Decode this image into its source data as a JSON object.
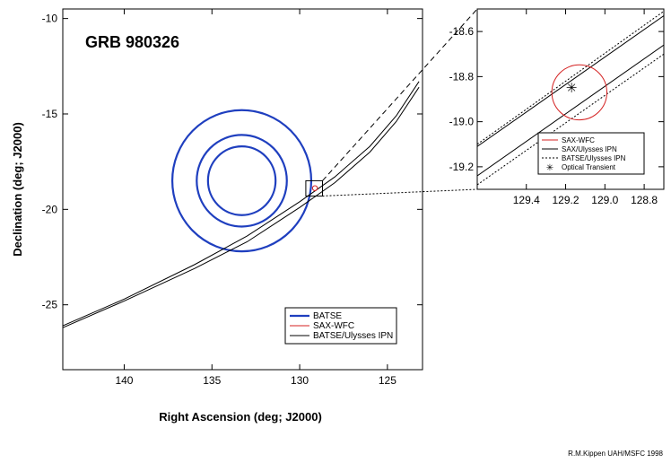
{
  "colors": {
    "batse": "#1f3fbf",
    "sax": "#d42020",
    "ipn": "#000000"
  },
  "chart_data": [
    {
      "type": "line",
      "title": "GRB 980326",
      "xlabel": "Right Ascension (deg; J2000)",
      "ylabel": "Declination (deg; J2000)",
      "xlim": [
        143.5,
        123.0
      ],
      "ylim": [
        -28.4,
        -9.5
      ],
      "xticks": [
        140,
        135,
        130,
        125
      ],
      "yticks": [
        -10,
        -15,
        -20,
        -25
      ],
      "grid": false,
      "legend_position": "bottom-right",
      "legend": [
        "BATSE",
        "SAX-WFC",
        "BATSE/Ulysses IPN"
      ],
      "batse_center": [
        133.3,
        -18.5
      ],
      "batse_radii_deg": [
        3.7,
        2.4,
        1.8
      ],
      "sax_wfc": {
        "center": [
          129.13,
          -18.89
        ],
        "radius_deg": 0.14
      },
      "ipn_annulus": [
        {
          "name": "BATSE/Ulysses IPN edge 1",
          "x": [
            143.5,
            140,
            136,
            133,
            130,
            128,
            126,
            124.5,
            123.2
          ],
          "y": [
            -26.1,
            -24.7,
            -22.9,
            -21.4,
            -19.6,
            -18.3,
            -16.7,
            -15.1,
            -13.3
          ]
        },
        {
          "name": "BATSE/Ulysses IPN edge 2",
          "x": [
            143.5,
            140,
            136,
            133,
            130,
            128,
            126,
            124.5,
            123.2
          ],
          "y": [
            -26.2,
            -24.8,
            -23.1,
            -21.7,
            -19.9,
            -18.6,
            -17.0,
            -15.4,
            -13.6
          ]
        }
      ]
    },
    {
      "type": "line",
      "title": "",
      "xlim": [
        129.65,
        128.7
      ],
      "ylim": [
        -19.3,
        -18.5
      ],
      "xticks": [
        129.4,
        129.2,
        129.0,
        128.8
      ],
      "yticks": [
        -18.6,
        -18.8,
        -19.0,
        -19.2
      ],
      "grid": false,
      "legend_position": "bottom-right",
      "legend": [
        "SAX-WFC",
        "SAX/Ulysses IPN",
        "BATSE/Ulysses IPN",
        "Optical Transient"
      ],
      "sax_wfc": {
        "center": [
          129.13,
          -18.87
        ],
        "radius_deg": 0.14
      },
      "sax_ulysses_ipn": [
        {
          "x": [
            129.65,
            128.7
          ],
          "y": [
            -19.11,
            -18.53
          ]
        },
        {
          "x": [
            129.65,
            128.7
          ],
          "y": [
            -19.24,
            -18.66
          ]
        }
      ],
      "batse_ulysses_ipn": [
        {
          "x": [
            129.65,
            128.7
          ],
          "y": [
            -19.1,
            -18.51
          ]
        },
        {
          "x": [
            129.65,
            128.7
          ],
          "y": [
            -19.28,
            -18.7
          ]
        }
      ],
      "optical_transient": [
        129.17,
        -18.85
      ]
    }
  ],
  "footer": {
    "credit": "R.M.Kippen  UAH/MSFC  1998"
  }
}
